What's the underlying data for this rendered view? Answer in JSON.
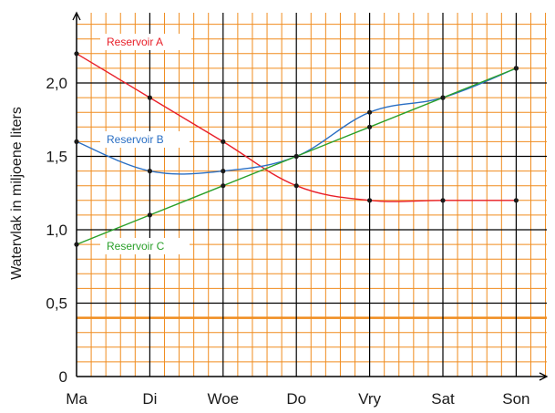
{
  "chart_data": {
    "type": "line",
    "title": "",
    "xlabel": "",
    "ylabel": "Watervlak in miljoene liters",
    "categories": [
      "Ma",
      "Di",
      "Woe",
      "Do",
      "Vry",
      "Sat",
      "Son"
    ],
    "y_ticks": [
      "0",
      "0,5",
      "1,0",
      "1,5",
      "2,0"
    ],
    "ylim": [
      0,
      2.5
    ],
    "grid": true,
    "series": [
      {
        "name": "Reservoir A",
        "color": "#e8202a",
        "values": [
          2.2,
          1.9,
          1.6,
          1.3,
          1.2,
          1.2,
          1.2
        ]
      },
      {
        "name": "Reservoir B",
        "color": "#2a6fc4",
        "values": [
          1.6,
          1.4,
          1.4,
          1.5,
          1.8,
          1.9,
          2.1
        ]
      },
      {
        "name": "Reservoir C",
        "color": "#2aa02a",
        "values": [
          0.9,
          1.1,
          1.3,
          1.5,
          1.7,
          1.9,
          2.1
        ]
      }
    ],
    "colors": {
      "grid_minor": "#f08c1e",
      "grid_major": "#000000"
    }
  }
}
